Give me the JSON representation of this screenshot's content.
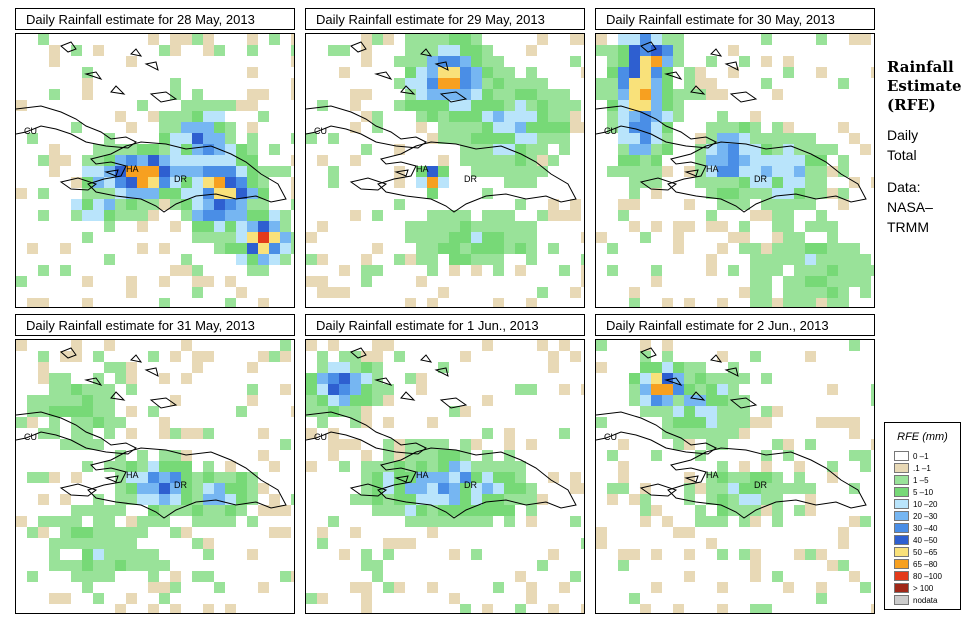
{
  "panels": [
    {
      "title": "Daily Rainfall estimate for  28 May, 2013",
      "labels": [
        "CU",
        "HA",
        "DR"
      ]
    },
    {
      "title": "Daily Rainfall estimate for  29 May, 2013",
      "labels": [
        "CU",
        "HA",
        "DR"
      ]
    },
    {
      "title": "Daily Rainfall estimate for  30 May, 2013",
      "labels": [
        "CU",
        "HA",
        "DR"
      ]
    },
    {
      "title": "Daily Rainfall estimate for  31 May, 2013",
      "labels": [
        "CU",
        "HA",
        "DR"
      ]
    },
    {
      "title": "Daily Rainfall estimate for  1 Jun., 2013",
      "labels": [
        "CU",
        "HA",
        "DR"
      ]
    },
    {
      "title": "Daily Rainfall estimate for  2 Jun., 2013",
      "labels": [
        "CU",
        "HA",
        "DR"
      ]
    }
  ],
  "side": {
    "heading1": "Rainfall",
    "heading2": "Estimate",
    "heading3": "(RFE)",
    "line1": "Daily",
    "line2": "Total",
    "line3": "Data:",
    "line4": "NASA–",
    "line5": "TRMM"
  },
  "legend": {
    "title": "RFE (mm)",
    "items": [
      {
        "label": "0 –1",
        "color": "#ffffff"
      },
      {
        "label": ".1 –1",
        "color": "#e8d9b6"
      },
      {
        "label": "1 –5",
        "color": "#99e299"
      },
      {
        "label": "5 –10",
        "color": "#77d977"
      },
      {
        "label": "10 –20",
        "color": "#b9e4fb"
      },
      {
        "label": "20 –30",
        "color": "#76b6f2"
      },
      {
        "label": "30 –40",
        "color": "#4a8ee6"
      },
      {
        "label": "40 –50",
        "color": "#2e5fd0"
      },
      {
        "label": "50 –65",
        "color": "#f9e17a"
      },
      {
        "label": "65 –80",
        "color": "#f7a020"
      },
      {
        "label": "80 –100",
        "color": "#e33a1a"
      },
      {
        "label": "> 100",
        "color": "#a02819"
      },
      {
        "label": "nodata",
        "color": "#cccccc"
      }
    ]
  }
}
